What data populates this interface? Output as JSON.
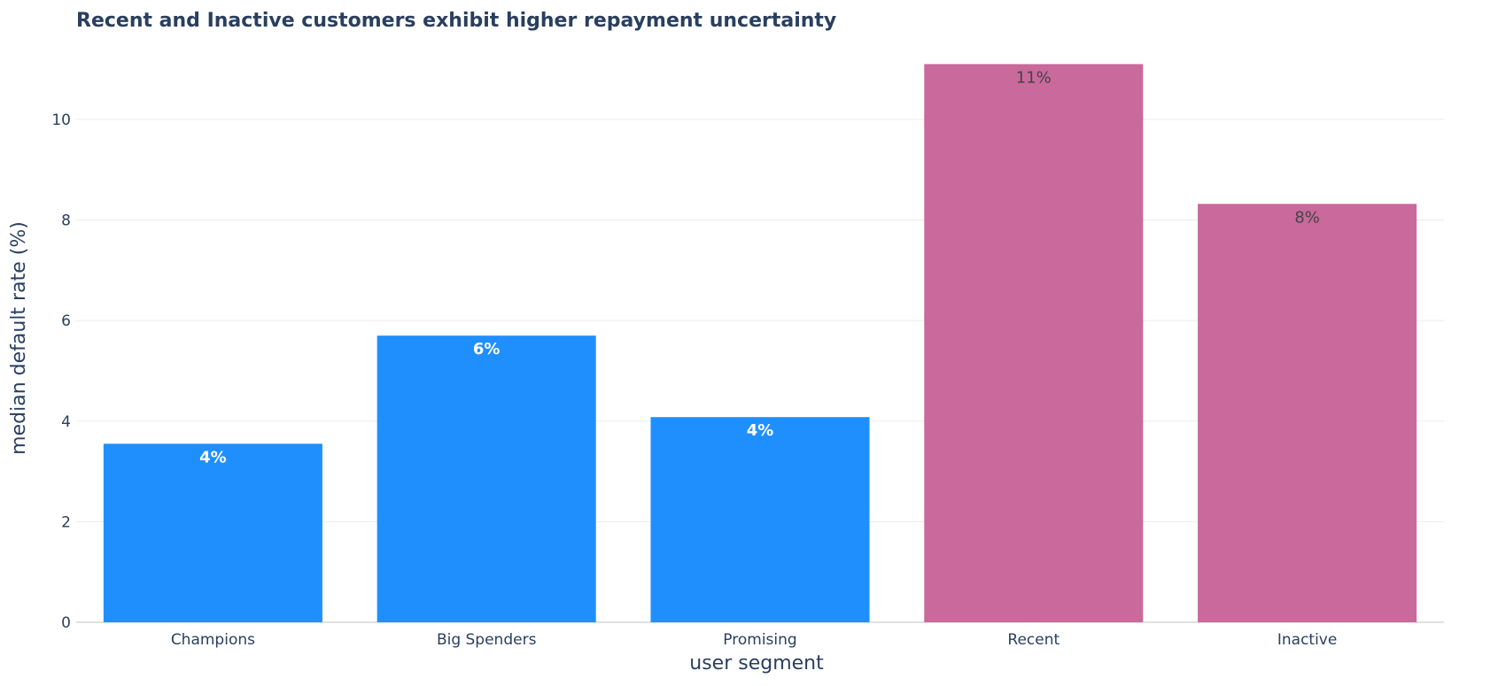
{
  "chart_data": {
    "type": "bar",
    "title": "Recent and Inactive customers exhibit higher repayment uncertainty",
    "xlabel": "user segment",
    "ylabel": "median default rate (%)",
    "categories": [
      "Champions",
      "Big Spenders",
      "Promising",
      "Recent",
      "Inactive"
    ],
    "values": [
      3.55,
      5.7,
      4.08,
      11.1,
      8.32
    ],
    "data_labels": [
      "4%",
      "6%",
      "4%",
      "11%",
      "8%"
    ],
    "bar_colors": [
      "#1f8ffe",
      "#1f8ffe",
      "#1f8ffe",
      "#c9699c",
      "#c9699c"
    ],
    "label_colors": [
      "#ffffff",
      "#ffffff",
      "#ffffff",
      "#444444",
      "#444444"
    ],
    "label_bold": [
      true,
      true,
      true,
      false,
      false
    ],
    "yticks": [
      0,
      2,
      4,
      6,
      8,
      10
    ],
    "ylim": [
      0,
      11.6
    ],
    "grid": true,
    "colors": {
      "text": "#2a3f5f",
      "grid": "#ebebeb",
      "background": "#ffffff"
    }
  }
}
